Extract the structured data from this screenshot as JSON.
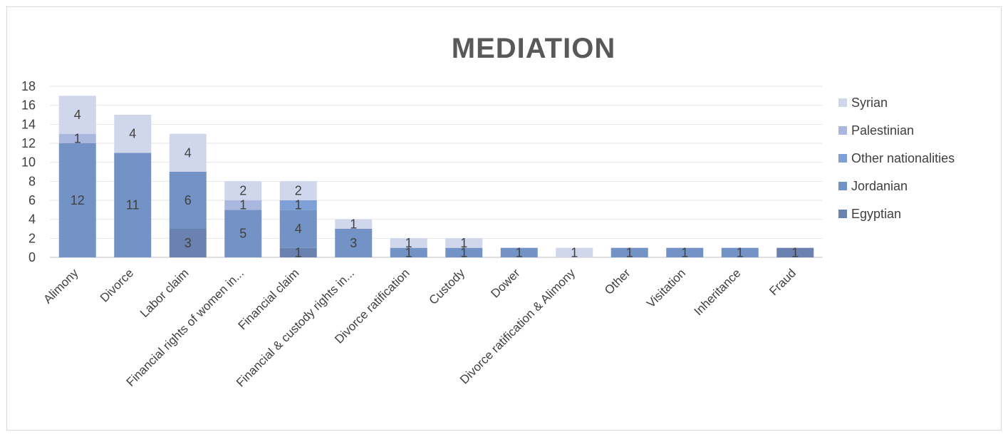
{
  "chart_data": {
    "type": "bar",
    "stacked": true,
    "title": "MEDIATION",
    "xlabel": "",
    "ylabel": "",
    "ylim": [
      0,
      18
    ],
    "yticks": [
      0,
      2,
      4,
      6,
      8,
      10,
      12,
      14,
      16,
      18
    ],
    "grid": true,
    "legend_position": "right",
    "categories": [
      "Alimony",
      "Divorce",
      "Labor claim",
      "Financial rights of women in...",
      "Financial claim",
      "Financial & custody rights in...",
      "Divorce ratification",
      "Custody",
      "Dower",
      "Divorce ratification & Alimony",
      "Other",
      "Visitation",
      "Inheritance",
      "Fraud"
    ],
    "series": [
      {
        "name": "Egyptian",
        "color": "#6b82b1",
        "values": [
          0,
          0,
          3,
          0,
          1,
          0,
          0,
          0,
          0,
          0,
          0,
          0,
          0,
          1
        ]
      },
      {
        "name": "Jordanian",
        "color": "#7393c6",
        "values": [
          12,
          11,
          6,
          5,
          4,
          3,
          1,
          1,
          1,
          0,
          1,
          1,
          1,
          0
        ]
      },
      {
        "name": "Other nationalities",
        "color": "#7ea0d6",
        "values": [
          0,
          0,
          0,
          0,
          1,
          0,
          0,
          0,
          0,
          0,
          0,
          0,
          0,
          0
        ]
      },
      {
        "name": "Palestinian",
        "color": "#aab8df",
        "values": [
          1,
          0,
          0,
          1,
          0,
          0,
          0,
          0,
          0,
          0,
          0,
          0,
          0,
          0
        ]
      },
      {
        "name": "Syrian",
        "color": "#d0d7ec",
        "values": [
          4,
          4,
          4,
          2,
          2,
          1,
          1,
          1,
          0,
          1,
          0,
          0,
          0,
          0
        ]
      }
    ],
    "legend_order": [
      "Syrian",
      "Palestinian",
      "Other nationalities",
      "Jordanian",
      "Egyptian"
    ]
  }
}
